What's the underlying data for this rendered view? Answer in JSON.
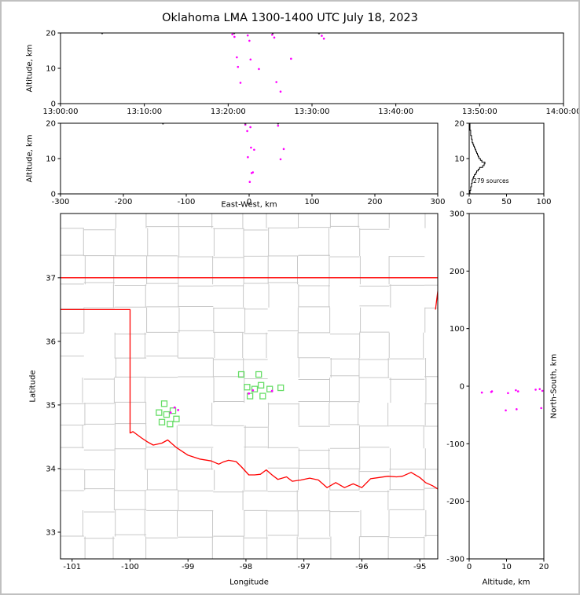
{
  "title": "Oklahoma LMA 1300-1400 UTC July 18, 2023",
  "colors": {
    "source": "#ff00ff",
    "source_top": "#444444",
    "station": "#66dd66",
    "county": "#c8c8c8",
    "state_border": "#ff0000",
    "histogram": "#000000"
  },
  "chart_data": [
    {
      "id": "time_height",
      "type": "scatter",
      "xlabel": "",
      "ylabel": "Altitude, km",
      "xlim": [
        0,
        3600
      ],
      "ylim": [
        0,
        20
      ],
      "xticks": {
        "values": [
          0,
          600,
          1200,
          1800,
          2400,
          3000,
          3600
        ],
        "labels": [
          "13:00:00",
          "13:10:00",
          "13:20:00",
          "13:30:00",
          "13:40:00",
          "13:50:00",
          "14:00:00"
        ]
      },
      "yticks": {
        "values": [
          0,
          10,
          20
        ],
        "labels": [
          "0",
          "10",
          "20"
        ]
      },
      "series": [
        {
          "name": "vhf-sources",
          "type": "scatter",
          "color": "#ff00ff",
          "size": 1.3,
          "points": [
            [
              1230,
              19.6
            ],
            [
              1245,
              18.9
            ],
            [
              1262,
              13.1
            ],
            [
              1270,
              10.4
            ],
            [
              1288,
              5.9
            ],
            [
              1340,
              19.3
            ],
            [
              1352,
              17.8
            ],
            [
              1360,
              12.5
            ],
            [
              1420,
              9.8
            ],
            [
              1515,
              19.5
            ],
            [
              1530,
              18.7
            ],
            [
              1545,
              6.1
            ],
            [
              1575,
              3.4
            ],
            [
              1650,
              12.7
            ],
            [
              1870,
              19.2
            ],
            [
              1885,
              18.4
            ]
          ]
        },
        {
          "name": "vhf-sources-top",
          "type": "scatter",
          "color": "#444444",
          "size": 1.2,
          "points": [
            [
              298,
              19.9
            ],
            [
              1243,
              19.9
            ],
            [
              1519,
              19.9
            ],
            [
              1850,
              19.85
            ]
          ]
        }
      ]
    },
    {
      "id": "ew_height",
      "type": "scatter",
      "xlabel": "East-West, km",
      "ylabel": "Altitude, km",
      "xlim": [
        -300,
        300
      ],
      "ylim": [
        0,
        20
      ],
      "xticks": {
        "values": [
          -300,
          -200,
          -100,
          0,
          100,
          200,
          300
        ],
        "labels": [
          "-300",
          "-200",
          "-100",
          "0",
          "100",
          "200",
          "300"
        ]
      },
      "yticks": {
        "values": [
          0,
          10,
          20
        ],
        "labels": [
          "0",
          "10",
          "20"
        ]
      },
      "series": [
        {
          "name": "vhf-sources",
          "type": "scatter",
          "color": "#ff00ff",
          "size": 1.3,
          "points": [
            [
              -6,
              19.6
            ],
            [
              2,
              18.9
            ],
            [
              3,
              13.1
            ],
            [
              -2,
              10.4
            ],
            [
              4,
              5.9
            ],
            [
              1,
              3.4
            ],
            [
              8,
              12.5
            ],
            [
              46,
              19.3
            ],
            [
              55,
              12.7
            ],
            [
              50,
              9.8
            ],
            [
              -3,
              17.8
            ],
            [
              6,
              6.1
            ]
          ]
        },
        {
          "name": "vhf-sources-top",
          "type": "scatter",
          "color": "#444444",
          "size": 1.2,
          "points": [
            [
              -137,
              19.9
            ],
            [
              -6,
              19.9
            ],
            [
              46,
              19.9
            ]
          ]
        }
      ]
    },
    {
      "id": "alt_histogram",
      "type": "line",
      "xlabel": "",
      "ylabel": "",
      "annotation": "279 sources",
      "xlim": [
        0,
        100
      ],
      "ylim": [
        0,
        20
      ],
      "xticks": {
        "values": [
          0,
          50,
          100
        ],
        "labels": [
          "0",
          "50",
          "100"
        ]
      },
      "yticks": {
        "values": [
          0,
          10,
          20
        ],
        "labels": [
          "0",
          "10",
          "20"
        ]
      },
      "series": [
        {
          "name": "altitude-histogram",
          "type": "profile",
          "color": "#000000",
          "bin": 0.5,
          "values": [
            1,
            1,
            2,
            2,
            3,
            3,
            4,
            4,
            5,
            6,
            7,
            9,
            10,
            12,
            14,
            18,
            20,
            21,
            17,
            15,
            13,
            12,
            11,
            10,
            9,
            8,
            7,
            6,
            5,
            4,
            4,
            3,
            3,
            2,
            2,
            2,
            1,
            1,
            1,
            1
          ]
        }
      ]
    },
    {
      "id": "map",
      "type": "scatter",
      "xlabel": "Longitude",
      "ylabel": "Latitude",
      "xlim": [
        -101.2,
        -94.69
      ],
      "ylim": [
        32.58,
        38.01
      ],
      "xticks": {
        "values": [
          -101,
          -100,
          -99,
          -98,
          -97,
          -96,
          -95
        ],
        "labels": [
          "-101",
          "-100",
          "-99",
          "-98",
          "-97",
          "-96",
          "-95"
        ]
      },
      "yticks": {
        "values": [
          33,
          34,
          35,
          36,
          37
        ],
        "labels": [
          "33",
          "34",
          "35",
          "36",
          "37"
        ]
      },
      "series": [
        {
          "name": "county-borders",
          "type": "county_grid",
          "color": "#c8c8c8",
          "seed": 11,
          "lon_step": 0.52,
          "lat_step": 0.38
        },
        {
          "name": "state-borders",
          "type": "paths",
          "color": "#ff0000",
          "width": 1.3,
          "paths": [
            [
              [
                -101.2,
                37.0
              ],
              [
                -94.69,
                37.0
              ]
            ],
            [
              [
                -94.66,
                37.0
              ],
              [
                -94.73,
                36.5
              ]
            ],
            [
              [
                -101.2,
                36.5
              ],
              [
                -100.0,
                36.5
              ],
              [
                -100.0,
                34.56
              ],
              [
                -99.95,
                34.58
              ],
              [
                -99.8,
                34.48
              ],
              [
                -99.7,
                34.42
              ],
              [
                -99.6,
                34.37
              ],
              [
                -99.45,
                34.4
              ],
              [
                -99.35,
                34.45
              ],
              [
                -99.2,
                34.33
              ],
              [
                -99.0,
                34.21
              ],
              [
                -98.8,
                34.15
              ],
              [
                -98.6,
                34.12
              ],
              [
                -98.47,
                34.07
              ],
              [
                -98.4,
                34.1
              ],
              [
                -98.3,
                34.13
              ],
              [
                -98.17,
                34.11
              ],
              [
                -98.08,
                34.03
              ],
              [
                -97.95,
                33.9
              ],
              [
                -97.85,
                33.9
              ],
              [
                -97.75,
                33.91
              ],
              [
                -97.65,
                33.98
              ],
              [
                -97.55,
                33.9
              ],
              [
                -97.45,
                33.83
              ],
              [
                -97.3,
                33.87
              ],
              [
                -97.2,
                33.8
              ],
              [
                -97.05,
                33.82
              ],
              [
                -96.9,
                33.85
              ],
              [
                -96.75,
                33.82
              ],
              [
                -96.6,
                33.7
              ],
              [
                -96.45,
                33.78
              ],
              [
                -96.3,
                33.7
              ],
              [
                -96.15,
                33.76
              ],
              [
                -96.0,
                33.7
              ],
              [
                -95.85,
                33.84
              ],
              [
                -95.7,
                33.86
              ],
              [
                -95.55,
                33.88
              ],
              [
                -95.4,
                33.87
              ],
              [
                -95.3,
                33.88
              ],
              [
                -95.15,
                33.94
              ],
              [
                -95.0,
                33.86
              ],
              [
                -94.9,
                33.78
              ],
              [
                -94.78,
                33.73
              ],
              [
                -94.69,
                33.68
              ]
            ]
          ]
        },
        {
          "name": "lma-stations",
          "type": "squares",
          "color": "#66dd66",
          "size": 7,
          "points": [
            [
              -98.08,
              35.48
            ],
            [
              -97.78,
              35.48
            ],
            [
              -97.98,
              35.28
            ],
            [
              -97.85,
              35.25
            ],
            [
              -97.74,
              35.31
            ],
            [
              -97.59,
              35.25
            ],
            [
              -97.4,
              35.27
            ],
            [
              -97.71,
              35.14
            ],
            [
              -97.93,
              35.14
            ],
            [
              -99.41,
              35.02
            ],
            [
              -99.5,
              34.88
            ],
            [
              -99.37,
              34.85
            ],
            [
              -99.26,
              34.91
            ],
            [
              -99.45,
              34.73
            ],
            [
              -99.31,
              34.7
            ],
            [
              -99.2,
              34.78
            ]
          ]
        },
        {
          "name": "vhf-sources",
          "type": "scatter",
          "color": "#ff00ff",
          "size": 1.4,
          "points": [
            [
              -99.23,
              34.96
            ],
            [
              -99.17,
              34.92
            ],
            [
              -99.3,
              34.88
            ],
            [
              -97.88,
              35.23
            ],
            [
              -97.95,
              35.18
            ],
            [
              -97.55,
              35.22
            ]
          ]
        }
      ]
    },
    {
      "id": "ns_height",
      "type": "scatter",
      "xlabel": "Altitude, km",
      "ylabel": "North-South, km",
      "xlim": [
        0,
        20
      ],
      "ylim": [
        -300,
        300
      ],
      "xticks": {
        "values": [
          0,
          10,
          20
        ],
        "labels": [
          "0",
          "10",
          "20"
        ]
      },
      "yticks": {
        "values": [
          -300,
          -200,
          -100,
          0,
          100,
          200,
          300
        ],
        "labels": [
          "-300",
          "-200",
          "-100",
          "0",
          "100",
          "200",
          "300"
        ]
      },
      "series": [
        {
          "name": "vhf-sources",
          "type": "scatter",
          "color": "#ff00ff",
          "size": 1.3,
          "points": [
            [
              19.6,
              -8
            ],
            [
              18.9,
              -5
            ],
            [
              13.1,
              -9
            ],
            [
              10.4,
              -12
            ],
            [
              5.9,
              -10
            ],
            [
              12.7,
              -40
            ],
            [
              9.8,
              -42
            ],
            [
              19.3,
              -38
            ],
            [
              3.4,
              -11
            ],
            [
              17.8,
              -6
            ],
            [
              6.1,
              -9
            ],
            [
              12.5,
              -7
            ]
          ]
        }
      ]
    }
  ]
}
